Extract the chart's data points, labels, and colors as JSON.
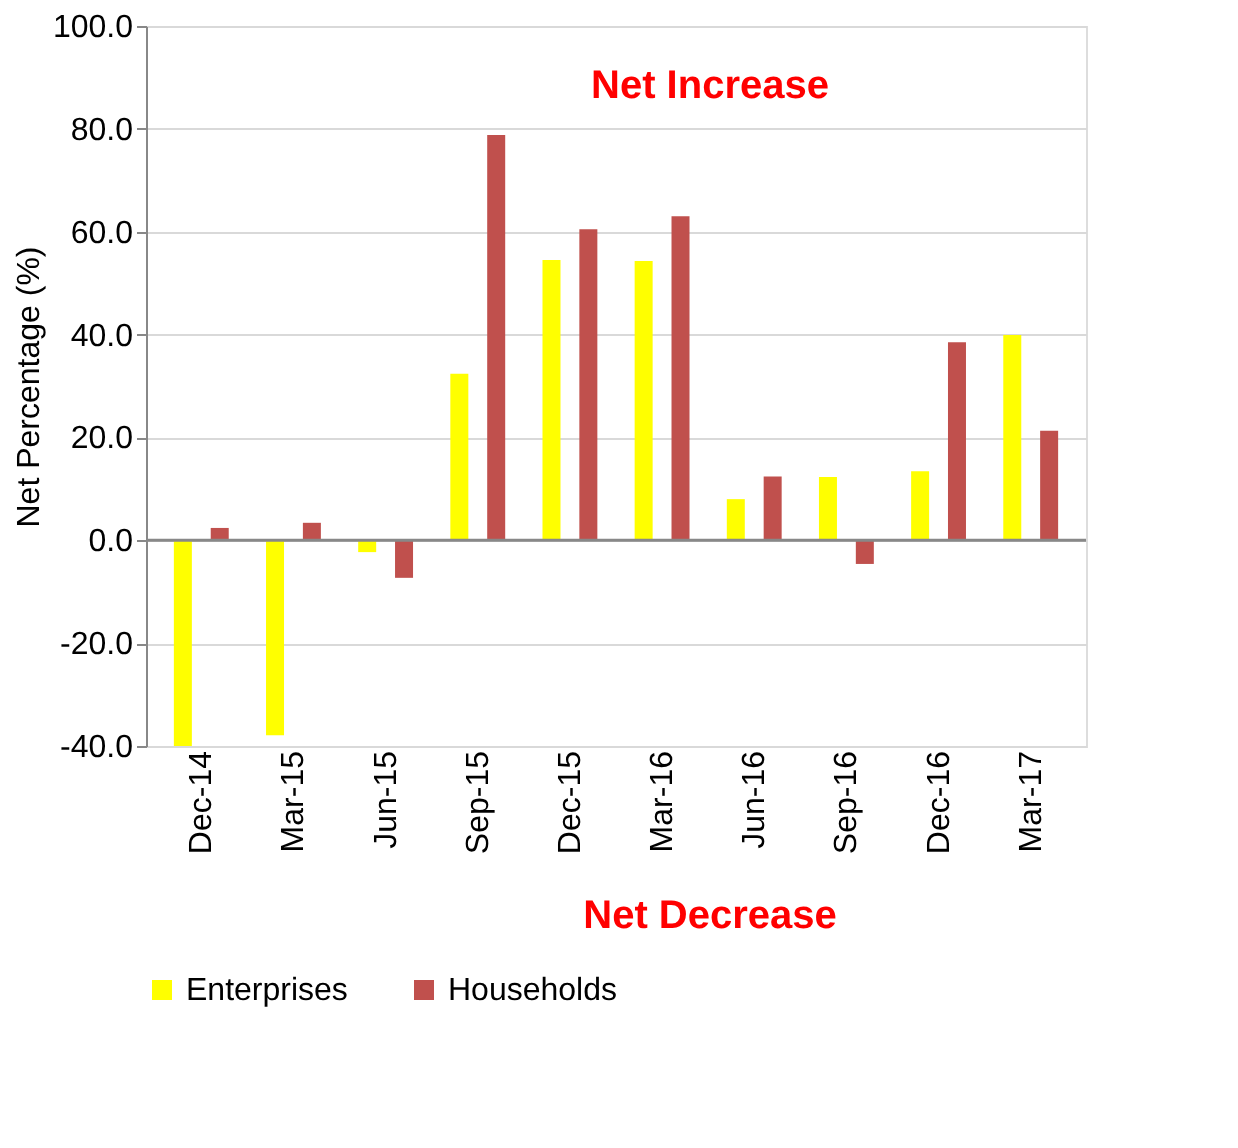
{
  "chart_data": {
    "type": "bar",
    "ylabel": "Net Percentage (%)",
    "categories": [
      "Dec-14",
      "Mar-15",
      "Jun-15",
      "Sep-15",
      "Dec-15",
      "Mar-16",
      "Jun-16",
      "Sep-16",
      "Dec-16",
      "Mar-17"
    ],
    "series": [
      {
        "name": "Enterprises",
        "color": "#ffff00",
        "values": [
          -40.0,
          -37.9,
          -2.3,
          32.4,
          54.5,
          54.3,
          8.0,
          12.3,
          13.4,
          39.9
        ]
      },
      {
        "name": "Households",
        "color": "#c0504d",
        "values": [
          2.4,
          3.4,
          -7.3,
          78.8,
          60.5,
          63.0,
          12.4,
          -4.6,
          38.5,
          21.3
        ]
      }
    ],
    "ylim": [
      -40,
      100
    ],
    "yticks": [
      {
        "value": -40,
        "label": "-40.0"
      },
      {
        "value": -20,
        "label": "-20.0"
      },
      {
        "value": 0,
        "label": "0.0"
      },
      {
        "value": 20,
        "label": "20.0"
      },
      {
        "value": 40,
        "label": "40.0"
      },
      {
        "value": 60,
        "label": "60.0"
      },
      {
        "value": 80,
        "label": "80.0"
      },
      {
        "value": 100,
        "label": "100.0"
      }
    ],
    "grid": "y",
    "legend": "bottom",
    "annotations": [
      "Net Increase",
      "Net Decrease"
    ]
  }
}
